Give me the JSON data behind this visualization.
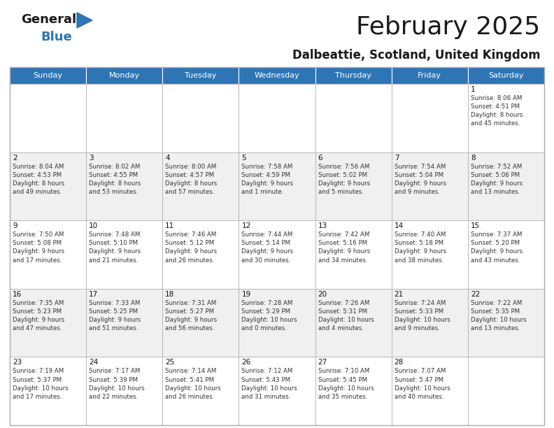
{
  "title": "February 2025",
  "subtitle": "Dalbeattie, Scotland, United Kingdom",
  "header_color": "#2E75B6",
  "header_text_color": "#FFFFFF",
  "background_color": "#FFFFFF",
  "alt_row_color": "#F0F0F0",
  "border_color": "#AAAAAA",
  "days_of_week": [
    "Sunday",
    "Monday",
    "Tuesday",
    "Wednesday",
    "Thursday",
    "Friday",
    "Saturday"
  ],
  "cell_data": [
    [
      "",
      "",
      "",
      "",
      "",
      "",
      "1\nSunrise: 8:06 AM\nSunset: 4:51 PM\nDaylight: 8 hours\nand 45 minutes."
    ],
    [
      "2\nSunrise: 8:04 AM\nSunset: 4:53 PM\nDaylight: 8 hours\nand 49 minutes.",
      "3\nSunrise: 8:02 AM\nSunset: 4:55 PM\nDaylight: 8 hours\nand 53 minutes.",
      "4\nSunrise: 8:00 AM\nSunset: 4:57 PM\nDaylight: 8 hours\nand 57 minutes.",
      "5\nSunrise: 7:58 AM\nSunset: 4:59 PM\nDaylight: 9 hours\nand 1 minute.",
      "6\nSunrise: 7:56 AM\nSunset: 5:02 PM\nDaylight: 9 hours\nand 5 minutes.",
      "7\nSunrise: 7:54 AM\nSunset: 5:04 PM\nDaylight: 9 hours\nand 9 minutes.",
      "8\nSunrise: 7:52 AM\nSunset: 5:06 PM\nDaylight: 9 hours\nand 13 minutes."
    ],
    [
      "9\nSunrise: 7:50 AM\nSunset: 5:08 PM\nDaylight: 9 hours\nand 17 minutes.",
      "10\nSunrise: 7:48 AM\nSunset: 5:10 PM\nDaylight: 9 hours\nand 21 minutes.",
      "11\nSunrise: 7:46 AM\nSunset: 5:12 PM\nDaylight: 9 hours\nand 26 minutes.",
      "12\nSunrise: 7:44 AM\nSunset: 5:14 PM\nDaylight: 9 hours\nand 30 minutes.",
      "13\nSunrise: 7:42 AM\nSunset: 5:16 PM\nDaylight: 9 hours\nand 34 minutes.",
      "14\nSunrise: 7:40 AM\nSunset: 5:18 PM\nDaylight: 9 hours\nand 38 minutes.",
      "15\nSunrise: 7:37 AM\nSunset: 5:20 PM\nDaylight: 9 hours\nand 43 minutes."
    ],
    [
      "16\nSunrise: 7:35 AM\nSunset: 5:23 PM\nDaylight: 9 hours\nand 47 minutes.",
      "17\nSunrise: 7:33 AM\nSunset: 5:25 PM\nDaylight: 9 hours\nand 51 minutes.",
      "18\nSunrise: 7:31 AM\nSunset: 5:27 PM\nDaylight: 9 hours\nand 56 minutes.",
      "19\nSunrise: 7:28 AM\nSunset: 5:29 PM\nDaylight: 10 hours\nand 0 minutes.",
      "20\nSunrise: 7:26 AM\nSunset: 5:31 PM\nDaylight: 10 hours\nand 4 minutes.",
      "21\nSunrise: 7:24 AM\nSunset: 5:33 PM\nDaylight: 10 hours\nand 9 minutes.",
      "22\nSunrise: 7:22 AM\nSunset: 5:35 PM\nDaylight: 10 hours\nand 13 minutes."
    ],
    [
      "23\nSunrise: 7:19 AM\nSunset: 5:37 PM\nDaylight: 10 hours\nand 17 minutes.",
      "24\nSunrise: 7:17 AM\nSunset: 5:39 PM\nDaylight: 10 hours\nand 22 minutes.",
      "25\nSunrise: 7:14 AM\nSunset: 5:41 PM\nDaylight: 10 hours\nand 26 minutes.",
      "26\nSunrise: 7:12 AM\nSunset: 5:43 PM\nDaylight: 10 hours\nand 31 minutes.",
      "27\nSunrise: 7:10 AM\nSunset: 5:45 PM\nDaylight: 10 hours\nand 35 minutes.",
      "28\nSunrise: 7:07 AM\nSunset: 5:47 PM\nDaylight: 10 hours\nand 40 minutes.",
      ""
    ]
  ],
  "num_rows": 5,
  "num_cols": 7,
  "fig_width": 7.92,
  "fig_height": 6.12
}
